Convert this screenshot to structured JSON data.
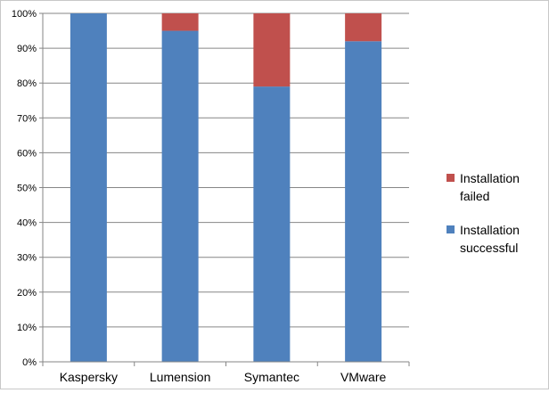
{
  "chart_data": {
    "type": "bar",
    "stacked": true,
    "percent": true,
    "categories": [
      "Kaspersky",
      "Lumension",
      "Symantec",
      "VMware"
    ],
    "series": [
      {
        "name": "Installation successful",
        "values": [
          100,
          95,
          79,
          92
        ],
        "color": "#4f81bd"
      },
      {
        "name": "Installation failed",
        "values": [
          0,
          5,
          21,
          8
        ],
        "color": "#c0504d"
      }
    ],
    "y_ticks": [
      "0%",
      "10%",
      "20%",
      "30%",
      "40%",
      "50%",
      "60%",
      "70%",
      "80%",
      "90%",
      "100%"
    ],
    "ylim": [
      0,
      100
    ],
    "grid": true,
    "grid_color": "#868686",
    "legend": {
      "position": "right",
      "entries": [
        {
          "lines": [
            "Installation",
            "failed"
          ],
          "color": "#c0504d"
        },
        {
          "lines": [
            "Installation",
            "successful"
          ],
          "color": "#4f81bd"
        }
      ]
    }
  }
}
